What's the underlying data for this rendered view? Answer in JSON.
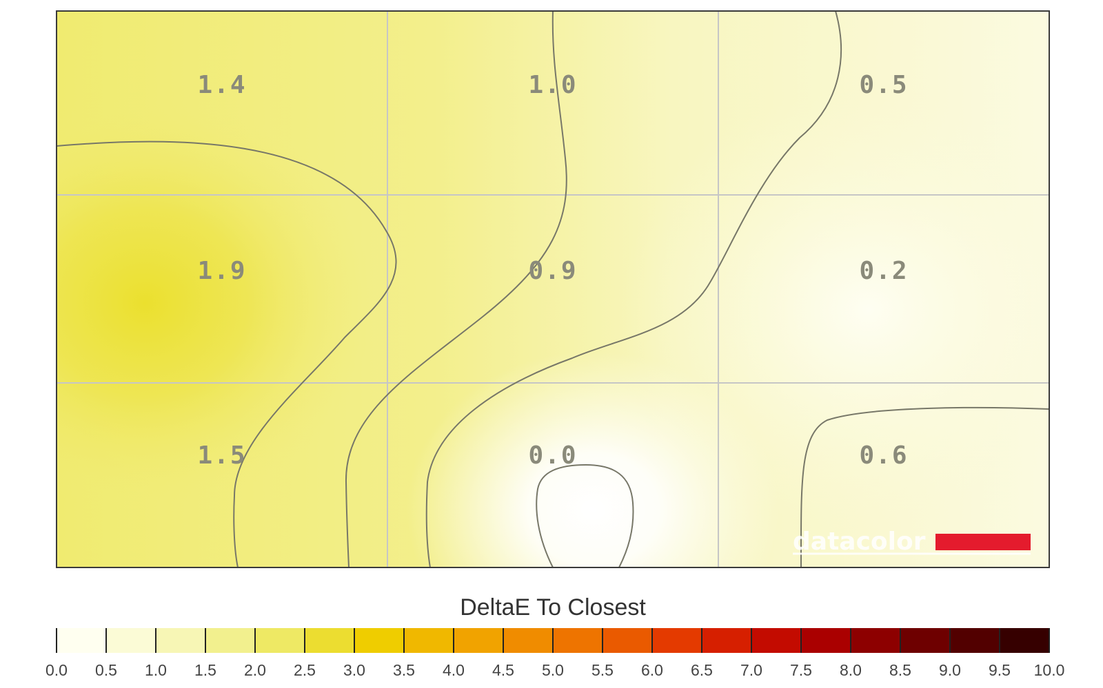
{
  "chart_data": {
    "type": "heatmap",
    "title": "",
    "xlabel": "",
    "ylabel": "",
    "grid": true,
    "rows": 3,
    "cols": 3,
    "values": [
      [
        1.4,
        1.0,
        0.5
      ],
      [
        1.9,
        0.9,
        0.2
      ],
      [
        1.5,
        0.0,
        0.6
      ]
    ],
    "cell_labels": [
      [
        "1.4",
        "1.0",
        "0.5"
      ],
      [
        "1.9",
        "0.9",
        "0.2"
      ],
      [
        "1.5",
        "0.0",
        "0.6"
      ]
    ],
    "contour_levels": [
      0.5,
      1.0,
      1.5
    ],
    "colorbar": {
      "title": "DeltaE To Closest",
      "range": [
        0,
        10
      ],
      "step": 0.5,
      "tick_labels": [
        "0.0",
        "0.5",
        "1.0",
        "1.5",
        "2.0",
        "2.5",
        "3.0",
        "3.5",
        "4.0",
        "4.5",
        "5.0",
        "5.5",
        "6.0",
        "6.5",
        "7.0",
        "7.5",
        "8.0",
        "8.5",
        "9.0",
        "9.5",
        "10.0"
      ],
      "colors": [
        "#fffff0",
        "#fbfbd6",
        "#f7f6b5",
        "#f2f08e",
        "#eee964",
        "#ecdd30",
        "#efcd00",
        "#f0b800",
        "#f1a300",
        "#f08c00",
        "#ee7400",
        "#ea5a00",
        "#e43a00",
        "#d61f00",
        "#c30b00",
        "#aa0000",
        "#8d0000",
        "#6e0000",
        "#520000",
        "#360000",
        "#1c0000"
      ]
    },
    "logo": {
      "text": "datacolor",
      "accent_color": "#e41b2d"
    }
  }
}
